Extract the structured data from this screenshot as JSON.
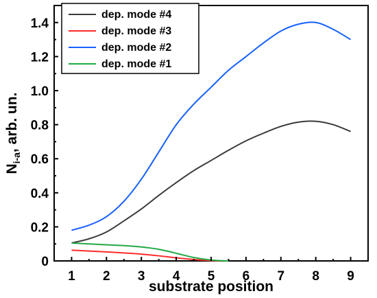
{
  "chart_data": {
    "type": "line",
    "xlabel": "substrate position",
    "ylabel_main": "N",
    "ylabel_sub": "i-a",
    "ylabel_rest": ", arb. un.",
    "xlim": [
      0.5,
      9.5
    ],
    "ylim": [
      0,
      1.5
    ],
    "xticks": [
      "1",
      "2",
      "3",
      "4",
      "5",
      "6",
      "7",
      "8",
      "9"
    ],
    "yticks": [
      "0",
      "0.2",
      "0.4",
      "0.6",
      "0.8",
      "1.0",
      "1.2",
      "1.4"
    ],
    "grid": false,
    "legend_position": "top-left",
    "x": [
      1,
      1.5,
      2,
      2.5,
      3,
      3.5,
      4,
      4.5,
      5,
      5.5,
      6,
      6.5,
      7,
      7.5,
      8,
      8.5,
      9
    ],
    "series": [
      {
        "name": "dep. mode #4",
        "color": "#3a3a3a",
        "x": [
          1,
          1.5,
          2,
          2.5,
          3,
          3.5,
          4,
          4.5,
          5,
          5.5,
          6,
          6.5,
          7,
          7.5,
          8,
          8.5,
          9
        ],
        "values": [
          0.105,
          0.13,
          0.17,
          0.235,
          0.305,
          0.385,
          0.46,
          0.53,
          0.59,
          0.65,
          0.705,
          0.75,
          0.79,
          0.815,
          0.82,
          0.8,
          0.76
        ]
      },
      {
        "name": "dep. mode #3",
        "color": "#ff2a2a",
        "x": [
          1,
          1.5,
          2,
          2.5,
          3,
          3.5,
          4,
          4.5,
          5,
          5.3
        ],
        "values": [
          0.063,
          0.058,
          0.053,
          0.047,
          0.04,
          0.03,
          0.018,
          0.008,
          0.002,
          0.0
        ]
      },
      {
        "name": "dep. mode #2",
        "color": "#1560ff",
        "x": [
          1,
          1.5,
          2,
          2.5,
          3,
          3.5,
          4,
          4.5,
          5,
          5.5,
          6,
          6.5,
          7,
          7.5,
          8,
          8.5,
          9
        ],
        "values": [
          0.18,
          0.21,
          0.26,
          0.35,
          0.48,
          0.64,
          0.8,
          0.92,
          1.02,
          1.12,
          1.2,
          1.28,
          1.35,
          1.39,
          1.4,
          1.36,
          1.3
        ]
      },
      {
        "name": "dep. mode #1",
        "color": "#22a844",
        "x": [
          1,
          1.5,
          2,
          2.5,
          3,
          3.5,
          4,
          4.5,
          5,
          5.5
        ],
        "values": [
          0.105,
          0.1,
          0.095,
          0.09,
          0.082,
          0.068,
          0.045,
          0.02,
          0.005,
          0.0
        ]
      }
    ]
  }
}
